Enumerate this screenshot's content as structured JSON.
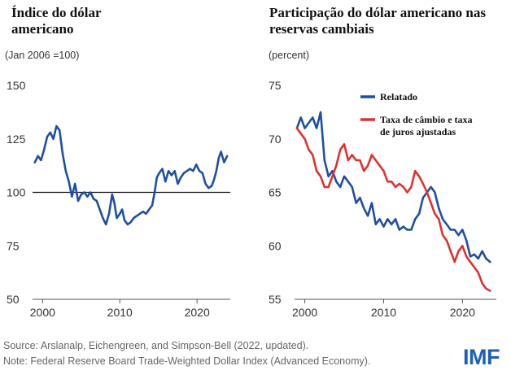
{
  "source_note": "Source: Arslanalp, Eichengreen, and Simpson-Bell (2022, updated).",
  "note": "Note: Federal Reserve Board Trade-Weighted Dollar Index (Advanced Economy).",
  "logo": "IMF",
  "colors": {
    "blue": "#1f4fa0",
    "red": "#e03030",
    "axis": "#555555"
  },
  "chart_data": [
    {
      "type": "line",
      "title": "Índice do dólar americano",
      "subtitle": "(Jan 2006 =100)",
      "xlim": [
        1998.7,
        2024.3
      ],
      "ylim": [
        50,
        150
      ],
      "yticks": [
        "150",
        "125",
        "100",
        "75",
        "50"
      ],
      "xticks": [
        "2000",
        "2010",
        "2020"
      ],
      "reference_line": 100,
      "series": [
        {
          "color": "#1f4fa0",
          "x": [
            1999.0,
            1999.4,
            1999.8,
            2000.2,
            2000.6,
            2001.0,
            2001.4,
            2001.8,
            2002.2,
            2002.6,
            2003.0,
            2003.4,
            2003.8,
            2004.2,
            2004.6,
            2005.0,
            2005.4,
            2005.8,
            2006.2,
            2006.6,
            2007.0,
            2007.4,
            2007.8,
            2008.2,
            2008.6,
            2009.0,
            2009.3,
            2009.6,
            2010.0,
            2010.3,
            2010.6,
            2011.0,
            2011.4,
            2011.8,
            2012.2,
            2012.6,
            2013.0,
            2013.4,
            2013.8,
            2014.2,
            2014.5,
            2014.8,
            2015.1,
            2015.5,
            2015.9,
            2016.3,
            2016.7,
            2017.1,
            2017.5,
            2017.9,
            2018.3,
            2018.7,
            2019.1,
            2019.5,
            2019.9,
            2020.3,
            2020.7,
            2021.1,
            2021.5,
            2021.9,
            2022.2,
            2022.5,
            2022.8,
            2023.1,
            2023.5,
            2023.9
          ],
          "y": [
            114,
            117,
            115,
            120,
            126,
            128,
            125,
            131,
            129,
            118,
            110,
            105,
            98,
            104,
            96,
            99,
            100,
            98,
            100,
            97,
            96,
            92,
            88,
            85,
            90,
            99,
            95,
            88,
            90,
            92,
            87,
            85,
            86,
            88,
            89,
            90,
            91,
            90,
            92,
            94,
            100,
            107,
            109,
            111,
            105,
            110,
            108,
            110,
            104,
            107,
            109,
            110,
            111,
            110,
            113,
            110,
            109,
            104,
            102,
            103,
            106,
            110,
            116,
            119,
            114,
            117
          ]
        }
      ]
    },
    {
      "type": "line",
      "title": "Participação do dólar americano nas reservas cambiais",
      "subtitle": "(percent)",
      "xlim": [
        1998.7,
        2024.3
      ],
      "ylim": [
        55,
        75
      ],
      "yticks": [
        "75",
        "70",
        "65",
        "60",
        "55"
      ],
      "xticks": [
        "2000",
        "2010",
        "2020"
      ],
      "legend_position": "top-right",
      "series": [
        {
          "name": "Relatado",
          "color": "#1f4fa0",
          "x": [
            1999.0,
            1999.5,
            2000.0,
            2000.5,
            2001.0,
            2001.5,
            2002.0,
            2002.5,
            2003.0,
            2003.5,
            2004.0,
            2004.5,
            2005.0,
            2005.5,
            2006.0,
            2006.5,
            2007.0,
            2007.5,
            2008.0,
            2008.5,
            2009.0,
            2009.5,
            2010.0,
            2010.5,
            2011.0,
            2011.5,
            2012.0,
            2012.5,
            2013.0,
            2013.5,
            2014.0,
            2014.5,
            2015.0,
            2015.5,
            2016.0,
            2016.5,
            2017.0,
            2017.5,
            2018.0,
            2018.5,
            2019.0,
            2019.5,
            2020.0,
            2020.5,
            2021.0,
            2021.5,
            2022.0,
            2022.5,
            2023.0,
            2023.5
          ],
          "y": [
            71.0,
            72.0,
            71.0,
            71.5,
            72.0,
            71.0,
            72.5,
            68.0,
            66.5,
            67.0,
            66.0,
            65.5,
            66.5,
            66.0,
            65.5,
            64.0,
            64.5,
            63.5,
            62.8,
            64.0,
            62.0,
            62.5,
            61.8,
            62.5,
            62.0,
            62.5,
            61.5,
            61.8,
            61.5,
            61.5,
            62.5,
            63.0,
            64.5,
            65.0,
            65.5,
            65.0,
            63.5,
            62.5,
            62.0,
            61.5,
            61.5,
            61.0,
            61.5,
            60.5,
            59.0,
            59.2,
            58.8,
            59.5,
            58.8,
            58.5
          ]
        },
        {
          "name": "Taxa de câmbio e taxa de juros ajustadas",
          "color": "#e03030",
          "x": [
            1999.0,
            1999.5,
            2000.0,
            2000.5,
            2001.0,
            2001.5,
            2002.0,
            2002.5,
            2003.0,
            2003.5,
            2004.0,
            2004.5,
            2005.0,
            2005.5,
            2006.0,
            2006.5,
            2007.0,
            2007.5,
            2008.0,
            2008.5,
            2009.0,
            2009.5,
            2010.0,
            2010.5,
            2011.0,
            2011.5,
            2012.0,
            2012.5,
            2013.0,
            2013.5,
            2014.0,
            2014.5,
            2015.0,
            2015.5,
            2016.0,
            2016.5,
            2017.0,
            2017.5,
            2018.0,
            2018.5,
            2019.0,
            2019.5,
            2020.0,
            2020.5,
            2021.0,
            2021.5,
            2022.0,
            2022.5,
            2023.0,
            2023.5
          ],
          "y": [
            71.0,
            70.5,
            70.0,
            69.0,
            68.5,
            67.0,
            66.5,
            65.5,
            65.5,
            66.5,
            67.5,
            69.0,
            69.5,
            68.0,
            68.5,
            68.0,
            68.0,
            67.0,
            67.5,
            68.5,
            68.0,
            67.5,
            67.0,
            66.0,
            66.0,
            65.5,
            65.8,
            65.5,
            65.0,
            65.5,
            67.0,
            66.5,
            65.8,
            65.0,
            64.0,
            63.0,
            62.5,
            61.0,
            60.5,
            59.5,
            58.5,
            59.5,
            60.0,
            59.0,
            58.5,
            58.0,
            57.5,
            56.5,
            56.0,
            55.8
          ]
        }
      ]
    }
  ]
}
